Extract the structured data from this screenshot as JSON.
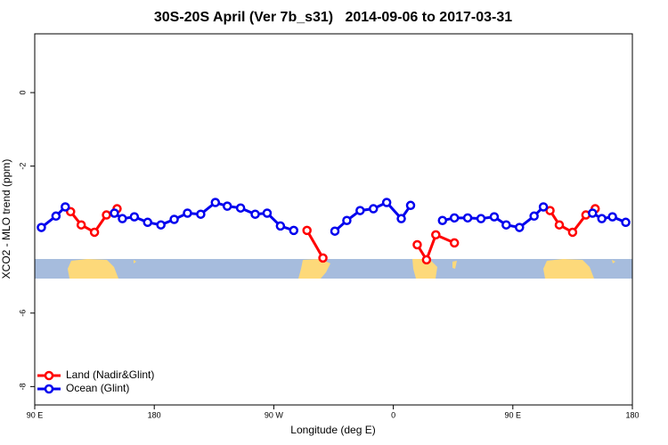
{
  "chart_data": {
    "type": "line",
    "title": "30S-20S April (Ver 7b_s31)   2014-09-06 to 2017-03-31",
    "xlabel": "Longitude (deg E)",
    "ylabel": "XCO2 - MLO trend (ppm)",
    "xlim": [
      90,
      540
    ],
    "ylim": [
      -8.5,
      1.6
    ],
    "xticks": [
      {
        "value": 90,
        "label": "90 E"
      },
      {
        "value": 180,
        "label": "180"
      },
      {
        "value": 270,
        "label": "90 W"
      },
      {
        "value": 360,
        "label": "0"
      },
      {
        "value": 450,
        "label": "90 E"
      },
      {
        "value": 540,
        "label": "180"
      }
    ],
    "yticks": [
      0,
      -2,
      -6,
      -8
    ],
    "legend": "lower left",
    "series": [
      {
        "name": "Land (Nadir&Glint)",
        "color": "#ff0000",
        "x": [
          117,
          125,
          135,
          144,
          152,
          null,
          295,
          307,
          null,
          378,
          385,
          392,
          406,
          null,
          478,
          485,
          495,
          505,
          512
        ],
        "values": [
          -3.24,
          -3.6,
          -3.8,
          -3.33,
          -3.16,
          null,
          -3.75,
          -4.5,
          null,
          -4.14,
          -4.55,
          -3.87,
          -4.09,
          null,
          -3.21,
          -3.6,
          -3.8,
          -3.33,
          -3.16
        ]
      },
      {
        "name": "Ocean (Glint)",
        "color": "#0000ee",
        "x": [
          95,
          106,
          113,
          null,
          150,
          156,
          165,
          175,
          185,
          195,
          205,
          215,
          226,
          235,
          245,
          256,
          265,
          275,
          285,
          null,
          316,
          325,
          335,
          345,
          355,
          366,
          373,
          null,
          397,
          406,
          416,
          426,
          436,
          445,
          455,
          466,
          473,
          null,
          510,
          517,
          525,
          535
        ],
        "values": [
          -3.67,
          -3.36,
          -3.11,
          null,
          -3.28,
          -3.43,
          -3.38,
          -3.53,
          -3.6,
          -3.45,
          -3.28,
          -3.31,
          -2.99,
          -3.09,
          -3.14,
          -3.31,
          -3.28,
          -3.63,
          -3.75,
          null,
          -3.77,
          -3.48,
          -3.21,
          -3.16,
          -2.99,
          -3.43,
          -3.07,
          null,
          -3.48,
          -3.41,
          -3.41,
          -3.43,
          -3.38,
          -3.6,
          -3.67,
          -3.36,
          -3.11,
          null,
          -3.28,
          -3.43,
          -3.38,
          -3.53
        ]
      }
    ]
  }
}
